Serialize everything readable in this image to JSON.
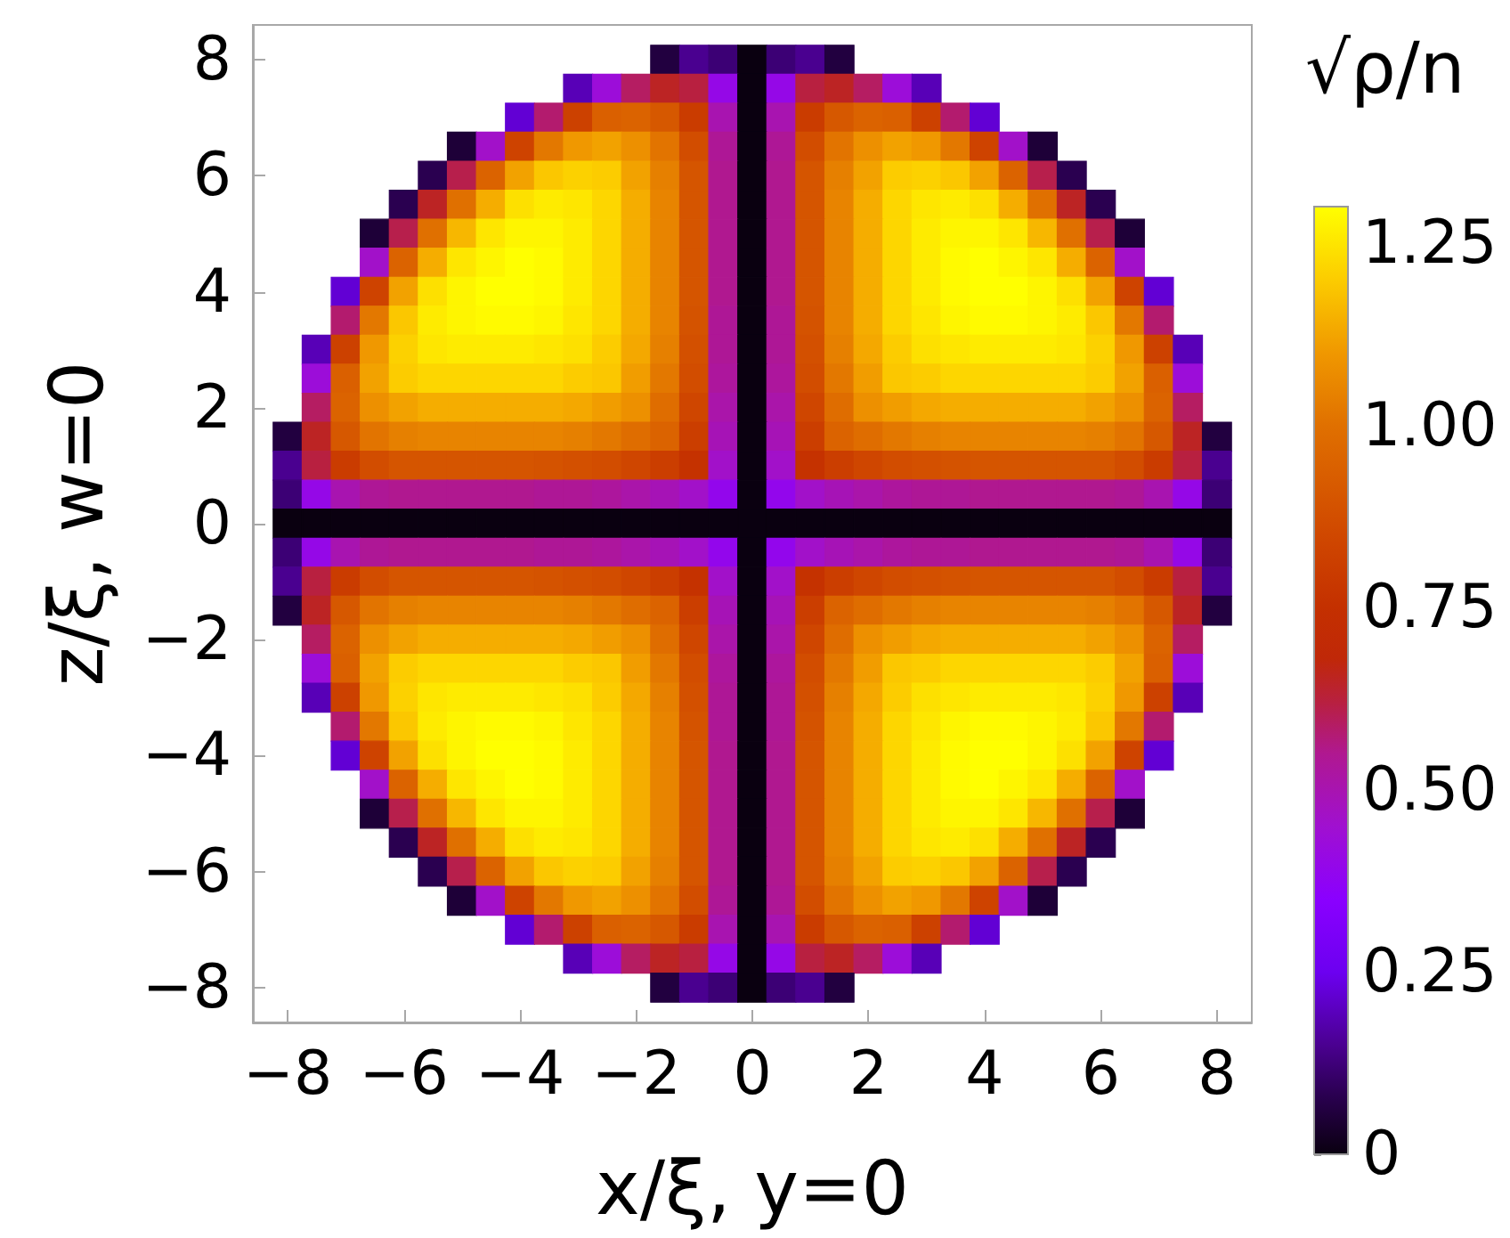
{
  "chart_data": {
    "type": "heatmap",
    "xlabel": "x/ξ, y=0",
    "ylabel": "z/ξ, w=0",
    "clabel": "√ρ/n",
    "x": [
      -8,
      -7.5,
      -7,
      -6.5,
      -6,
      -5.5,
      -5,
      -4.5,
      -4,
      -3.5,
      -3,
      -2.5,
      -2,
      -1.5,
      -1,
      -0.5,
      0,
      0.5,
      1,
      1.5,
      2,
      2.5,
      3,
      3.5,
      4,
      4.5,
      5,
      5.5,
      6,
      6.5,
      7,
      7.5,
      8
    ],
    "y": [
      8,
      7.5,
      7,
      6.5,
      6,
      5.5,
      5,
      4.5,
      4,
      3.5,
      3,
      2.5,
      2,
      1.5,
      1,
      0.5,
      0,
      -0.5,
      -1,
      -1.5,
      -2,
      -2.5,
      -3,
      -3.5,
      -4,
      -4.5,
      -5,
      -5.5,
      -6,
      -6.5,
      -7,
      -7.5,
      -8
    ],
    "cells": [
      [
        null,
        null,
        null,
        null,
        null,
        null,
        null,
        null,
        null,
        null,
        null,
        null,
        null,
        0.06,
        0.15,
        0.12,
        0,
        0.12,
        0.15,
        0.06,
        null,
        null,
        null,
        null,
        null,
        null,
        null,
        null,
        null,
        null,
        null,
        null,
        null
      ],
      [
        null,
        null,
        null,
        null,
        null,
        null,
        null,
        null,
        null,
        null,
        0.19,
        0.43,
        0.59,
        0.65,
        0.62,
        0.4,
        0,
        0.4,
        0.62,
        0.65,
        0.59,
        0.43,
        0.19,
        null,
        null,
        null,
        null,
        null,
        null,
        null,
        null,
        null,
        null
      ],
      [
        null,
        null,
        null,
        null,
        null,
        null,
        null,
        null,
        0.22,
        0.58,
        0.82,
        0.94,
        0.95,
        0.91,
        0.8,
        0.5,
        0,
        0.5,
        0.8,
        0.91,
        0.95,
        0.94,
        0.82,
        0.58,
        0.22,
        null,
        null,
        null,
        null,
        null,
        null,
        null,
        null
      ],
      [
        null,
        null,
        null,
        null,
        null,
        null,
        0.05,
        0.46,
        0.83,
        1.02,
        1.1,
        1.12,
        1.08,
        1.01,
        0.87,
        0.54,
        0,
        0.54,
        0.87,
        1.01,
        1.08,
        1.12,
        1.1,
        1.02,
        0.83,
        0.46,
        0.05,
        null,
        null,
        null,
        null,
        null,
        null
      ],
      [
        null,
        null,
        null,
        null,
        null,
        0.08,
        0.61,
        0.95,
        1.12,
        1.19,
        1.21,
        1.2,
        1.12,
        1.04,
        0.9,
        0.55,
        0,
        0.55,
        0.9,
        1.04,
        1.12,
        1.2,
        1.21,
        1.19,
        1.12,
        0.95,
        0.61,
        0.08,
        null,
        null,
        null,
        null,
        null
      ],
      [
        null,
        null,
        null,
        null,
        0.08,
        0.65,
        1,
        1.14,
        1.24,
        1.26,
        1.25,
        1.22,
        1.14,
        1.05,
        0.9,
        0.55,
        0,
        0.55,
        0.9,
        1.05,
        1.14,
        1.22,
        1.25,
        1.26,
        1.24,
        1.14,
        1,
        0.65,
        0.08,
        null,
        null,
        null,
        null
      ],
      [
        null,
        null,
        null,
        0.05,
        0.61,
        1,
        1.16,
        1.25,
        1.28,
        1.28,
        1.26,
        1.22,
        1.14,
        1.05,
        0.9,
        0.55,
        0,
        0.55,
        0.9,
        1.05,
        1.14,
        1.22,
        1.26,
        1.28,
        1.28,
        1.25,
        1.16,
        1,
        0.61,
        0.05,
        null,
        null,
        null
      ],
      [
        null,
        null,
        null,
        0.46,
        0.95,
        1.14,
        1.25,
        1.28,
        1.3,
        1.29,
        1.26,
        1.22,
        1.14,
        1.05,
        0.9,
        0.55,
        0,
        0.55,
        0.9,
        1.05,
        1.14,
        1.22,
        1.26,
        1.29,
        1.3,
        1.28,
        1.25,
        1.14,
        0.95,
        0.46,
        null,
        null,
        null
      ],
      [
        null,
        null,
        0.22,
        0.83,
        1.12,
        1.24,
        1.28,
        1.3,
        1.3,
        1.29,
        1.26,
        1.22,
        1.14,
        1.05,
        0.9,
        0.55,
        0,
        0.55,
        0.9,
        1.05,
        1.14,
        1.22,
        1.26,
        1.29,
        1.3,
        1.3,
        1.28,
        1.24,
        1.12,
        0.83,
        0.22,
        null,
        null
      ],
      [
        null,
        null,
        0.58,
        1.02,
        1.19,
        1.26,
        1.28,
        1.29,
        1.29,
        1.28,
        1.25,
        1.22,
        1.14,
        1.05,
        0.89,
        0.54,
        0,
        0.54,
        0.89,
        1.05,
        1.14,
        1.22,
        1.25,
        1.28,
        1.29,
        1.29,
        1.28,
        1.26,
        1.19,
        1.02,
        0.58,
        null,
        null
      ],
      [
        null,
        0.19,
        0.82,
        1.1,
        1.21,
        1.25,
        1.26,
        1.26,
        1.26,
        1.25,
        1.24,
        1.2,
        1.13,
        1.04,
        0.88,
        0.54,
        0,
        0.54,
        0.88,
        1.04,
        1.13,
        1.2,
        1.24,
        1.25,
        1.26,
        1.26,
        1.26,
        1.25,
        1.21,
        1.1,
        0.82,
        0.19,
        null
      ],
      [
        null,
        0.43,
        0.94,
        1.12,
        1.2,
        1.22,
        1.22,
        1.22,
        1.22,
        1.22,
        1.2,
        1.19,
        1.11,
        1.02,
        0.87,
        0.53,
        0,
        0.53,
        0.87,
        1.02,
        1.11,
        1.19,
        1.2,
        1.22,
        1.22,
        1.22,
        1.22,
        1.22,
        1.2,
        1.12,
        0.94,
        0.43,
        null
      ],
      [
        null,
        0.59,
        0.95,
        1.08,
        1.12,
        1.14,
        1.14,
        1.14,
        1.14,
        1.14,
        1.13,
        1.11,
        1.08,
        0.99,
        0.84,
        0.51,
        0,
        0.51,
        0.84,
        0.99,
        1.08,
        1.11,
        1.13,
        1.14,
        1.14,
        1.14,
        1.14,
        1.14,
        1.12,
        1.08,
        0.95,
        0.59,
        null
      ],
      [
        0.06,
        0.65,
        0.91,
        1.01,
        1.04,
        1.05,
        1.05,
        1.05,
        1.05,
        1.05,
        1.04,
        1.02,
        0.99,
        0.95,
        0.81,
        0.49,
        0,
        0.49,
        0.81,
        0.95,
        0.99,
        1.02,
        1.04,
        1.05,
        1.05,
        1.05,
        1.05,
        1.05,
        1.04,
        1.01,
        0.91,
        0.65,
        0.06
      ],
      [
        0.15,
        0.62,
        0.8,
        0.87,
        0.9,
        0.9,
        0.9,
        0.9,
        0.9,
        0.89,
        0.88,
        0.87,
        0.84,
        0.81,
        0.76,
        0.46,
        0,
        0.46,
        0.76,
        0.81,
        0.84,
        0.87,
        0.88,
        0.89,
        0.9,
        0.9,
        0.9,
        0.9,
        0.9,
        0.87,
        0.8,
        0.62,
        0.15
      ],
      [
        0.12,
        0.4,
        0.5,
        0.54,
        0.55,
        0.55,
        0.55,
        0.55,
        0.55,
        0.54,
        0.54,
        0.53,
        0.51,
        0.49,
        0.46,
        0.39,
        0,
        0.39,
        0.46,
        0.49,
        0.51,
        0.53,
        0.54,
        0.54,
        0.55,
        0.55,
        0.55,
        0.55,
        0.55,
        0.54,
        0.5,
        0.4,
        0.12
      ],
      [
        0,
        0,
        0,
        0,
        0,
        0,
        0,
        0,
        0,
        0,
        0,
        0,
        0,
        0,
        0,
        0,
        0,
        0,
        0,
        0,
        0,
        0,
        0,
        0,
        0,
        0,
        0,
        0,
        0,
        0,
        0,
        0,
        0
      ],
      [
        0.12,
        0.4,
        0.5,
        0.54,
        0.55,
        0.55,
        0.55,
        0.55,
        0.55,
        0.54,
        0.54,
        0.53,
        0.51,
        0.49,
        0.46,
        0.39,
        0,
        0.39,
        0.46,
        0.49,
        0.51,
        0.53,
        0.54,
        0.54,
        0.55,
        0.55,
        0.55,
        0.55,
        0.55,
        0.54,
        0.5,
        0.4,
        0.12
      ],
      [
        0.15,
        0.62,
        0.8,
        0.87,
        0.9,
        0.9,
        0.9,
        0.9,
        0.9,
        0.89,
        0.88,
        0.87,
        0.84,
        0.81,
        0.76,
        0.46,
        0,
        0.46,
        0.76,
        0.81,
        0.84,
        0.87,
        0.88,
        0.89,
        0.9,
        0.9,
        0.9,
        0.9,
        0.9,
        0.87,
        0.8,
        0.62,
        0.15
      ],
      [
        0.06,
        0.65,
        0.91,
        1.01,
        1.04,
        1.05,
        1.05,
        1.05,
        1.05,
        1.05,
        1.04,
        1.02,
        0.99,
        0.95,
        0.81,
        0.49,
        0,
        0.49,
        0.81,
        0.95,
        0.99,
        1.02,
        1.04,
        1.05,
        1.05,
        1.05,
        1.05,
        1.05,
        1.04,
        1.01,
        0.91,
        0.65,
        0.06
      ],
      [
        null,
        0.59,
        0.95,
        1.08,
        1.12,
        1.14,
        1.14,
        1.14,
        1.14,
        1.14,
        1.13,
        1.11,
        1.08,
        0.99,
        0.84,
        0.51,
        0,
        0.51,
        0.84,
        0.99,
        1.08,
        1.11,
        1.13,
        1.14,
        1.14,
        1.14,
        1.14,
        1.14,
        1.12,
        1.08,
        0.95,
        0.59,
        null
      ],
      [
        null,
        0.43,
        0.94,
        1.12,
        1.2,
        1.22,
        1.22,
        1.22,
        1.22,
        1.22,
        1.2,
        1.19,
        1.11,
        1.02,
        0.87,
        0.53,
        0,
        0.53,
        0.87,
        1.02,
        1.11,
        1.19,
        1.2,
        1.22,
        1.22,
        1.22,
        1.22,
        1.22,
        1.2,
        1.12,
        0.94,
        0.43,
        null
      ],
      [
        null,
        0.19,
        0.82,
        1.1,
        1.21,
        1.25,
        1.26,
        1.26,
        1.26,
        1.25,
        1.24,
        1.2,
        1.13,
        1.04,
        0.88,
        0.54,
        0,
        0.54,
        0.88,
        1.04,
        1.13,
        1.2,
        1.24,
        1.25,
        1.26,
        1.26,
        1.26,
        1.25,
        1.21,
        1.1,
        0.82,
        0.19,
        null
      ],
      [
        null,
        null,
        0.58,
        1.02,
        1.19,
        1.26,
        1.28,
        1.29,
        1.29,
        1.28,
        1.25,
        1.22,
        1.14,
        1.05,
        0.89,
        0.54,
        0,
        0.54,
        0.89,
        1.05,
        1.14,
        1.22,
        1.25,
        1.28,
        1.29,
        1.29,
        1.28,
        1.26,
        1.19,
        1.02,
        0.58,
        null,
        null
      ],
      [
        null,
        null,
        0.22,
        0.83,
        1.12,
        1.24,
        1.28,
        1.3,
        1.3,
        1.29,
        1.26,
        1.22,
        1.14,
        1.05,
        0.9,
        0.55,
        0,
        0.55,
        0.9,
        1.05,
        1.14,
        1.22,
        1.26,
        1.29,
        1.3,
        1.3,
        1.28,
        1.24,
        1.12,
        0.83,
        0.22,
        null,
        null
      ],
      [
        null,
        null,
        null,
        0.46,
        0.95,
        1.14,
        1.25,
        1.28,
        1.3,
        1.29,
        1.26,
        1.22,
        1.14,
        1.05,
        0.9,
        0.55,
        0,
        0.55,
        0.9,
        1.05,
        1.14,
        1.22,
        1.26,
        1.29,
        1.3,
        1.28,
        1.25,
        1.14,
        0.95,
        0.46,
        null,
        null,
        null
      ],
      [
        null,
        null,
        null,
        0.05,
        0.61,
        1,
        1.16,
        1.25,
        1.28,
        1.28,
        1.26,
        1.22,
        1.14,
        1.05,
        0.9,
        0.55,
        0,
        0.55,
        0.9,
        1.05,
        1.14,
        1.22,
        1.26,
        1.28,
        1.28,
        1.25,
        1.16,
        1,
        0.61,
        0.05,
        null,
        null,
        null
      ],
      [
        null,
        null,
        null,
        null,
        0.08,
        0.65,
        1,
        1.14,
        1.24,
        1.26,
        1.25,
        1.22,
        1.14,
        1.05,
        0.9,
        0.55,
        0,
        0.55,
        0.9,
        1.05,
        1.14,
        1.22,
        1.25,
        1.26,
        1.24,
        1.14,
        1,
        0.65,
        0.08,
        null,
        null,
        null,
        null
      ],
      [
        null,
        null,
        null,
        null,
        null,
        0.08,
        0.61,
        0.95,
        1.12,
        1.19,
        1.21,
        1.2,
        1.12,
        1.04,
        0.9,
        0.55,
        0,
        0.55,
        0.9,
        1.04,
        1.12,
        1.2,
        1.21,
        1.19,
        1.12,
        0.95,
        0.61,
        0.08,
        null,
        null,
        null,
        null,
        null
      ],
      [
        null,
        null,
        null,
        null,
        null,
        null,
        0.05,
        0.46,
        0.83,
        1.02,
        1.1,
        1.12,
        1.08,
        1.01,
        0.87,
        0.54,
        0,
        0.54,
        0.87,
        1.01,
        1.08,
        1.12,
        1.1,
        1.02,
        0.83,
        0.46,
        0.05,
        null,
        null,
        null,
        null,
        null,
        null
      ],
      [
        null,
        null,
        null,
        null,
        null,
        null,
        null,
        null,
        0.22,
        0.58,
        0.82,
        0.94,
        0.95,
        0.91,
        0.8,
        0.5,
        0,
        0.5,
        0.8,
        0.91,
        0.95,
        0.94,
        0.82,
        0.58,
        0.22,
        null,
        null,
        null,
        null,
        null,
        null,
        null,
        null
      ],
      [
        null,
        null,
        null,
        null,
        null,
        null,
        null,
        null,
        null,
        null,
        0.19,
        0.43,
        0.59,
        0.65,
        0.62,
        0.4,
        0,
        0.4,
        0.62,
        0.65,
        0.59,
        0.43,
        0.19,
        null,
        null,
        null,
        null,
        null,
        null,
        null,
        null,
        null,
        null
      ],
      [
        null,
        null,
        null,
        null,
        null,
        null,
        null,
        null,
        null,
        null,
        null,
        null,
        null,
        0.06,
        0.15,
        0.12,
        0,
        0.12,
        0.15,
        0.06,
        null,
        null,
        null,
        null,
        null,
        null,
        null,
        null,
        null,
        null,
        null,
        null,
        null
      ]
    ],
    "xlim": [
      -8.6,
      8.6
    ],
    "ylim": [
      -8.6,
      8.6
    ],
    "xticks": [
      -8,
      -6,
      -4,
      -2,
      0,
      2,
      4,
      6,
      8
    ],
    "yticks": [
      -8,
      -6,
      -4,
      -2,
      0,
      2,
      4,
      6,
      8
    ],
    "clim": [
      0,
      1.3
    ],
    "cticks": [
      0,
      {
        "value": 0.05,
        "label": null
      },
      {
        "value": 0.1,
        "label": null
      },
      {
        "value": 0.15,
        "label": null
      },
      {
        "value": 0.2,
        "label": null
      },
      0.25,
      {
        "value": 0.3,
        "label": null
      },
      {
        "value": 0.35,
        "label": null
      },
      {
        "value": 0.4,
        "label": null
      },
      {
        "value": 0.45,
        "label": null
      },
      {
        "value": 0.5,
        "label": "0.50"
      },
      {
        "value": 0.55,
        "label": null
      },
      {
        "value": 0.6,
        "label": null
      },
      {
        "value": 0.65,
        "label": null
      },
      {
        "value": 0.7,
        "label": null
      },
      0.75,
      {
        "value": 0.8,
        "label": null
      },
      {
        "value": 0.85,
        "label": null
      },
      {
        "value": 0.9,
        "label": null
      },
      {
        "value": 0.95,
        "label": null
      },
      {
        "value": 1,
        "label": "1.00"
      },
      {
        "value": 1.05,
        "label": null
      },
      {
        "value": 1.1,
        "label": null
      },
      {
        "value": 1.15,
        "label": null
      },
      {
        "value": 1.2,
        "label": null
      },
      1.25,
      {
        "value": 1.3,
        "label": null
      }
    ]
  }
}
